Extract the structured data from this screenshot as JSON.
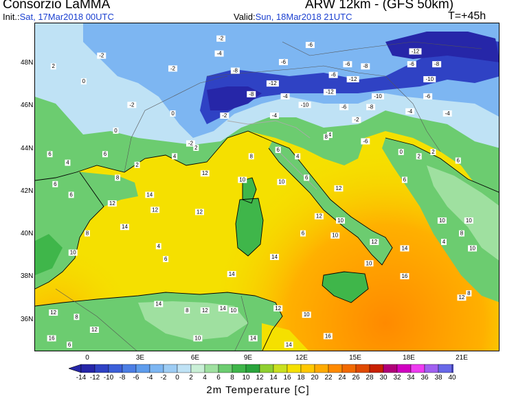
{
  "header": {
    "title": "Consorzio LaMMA",
    "model": "ARW 12km - (GFS 50km)",
    "init_label": "Init.:",
    "init_value": "Sat, 17Mar2018 00UTC",
    "valid_label": "Valid:",
    "valid_value": "Sun, 18Mar2018 21UTC",
    "forecast_step": "T=+45h"
  },
  "map": {
    "lat_labels": [
      "48N",
      "46N",
      "44N",
      "42N",
      "40N",
      "38N",
      "36N"
    ],
    "lon_labels": [
      "0",
      "3E",
      "6E",
      "9E",
      "12E",
      "15E",
      "18E",
      "21E"
    ],
    "sea_color": "#f5e000",
    "field_labels": [
      {
        "text": "-2",
        "lon": 7.5,
        "lat": 49.1
      },
      {
        "text": "-6",
        "lon": 12.5,
        "lat": 48.8
      },
      {
        "text": "-12",
        "lon": 18.4,
        "lat": 48.5
      },
      {
        "text": "-2",
        "lon": 0.8,
        "lat": 48.3
      },
      {
        "text": "-4",
        "lon": 7.4,
        "lat": 48.4
      },
      {
        "text": "-6",
        "lon": 11.0,
        "lat": 48.0
      },
      {
        "text": "-6",
        "lon": 14.6,
        "lat": 47.9
      },
      {
        "text": "-8",
        "lon": 15.6,
        "lat": 47.8
      },
      {
        "text": "-6",
        "lon": 18.2,
        "lat": 47.9
      },
      {
        "text": "-8",
        "lon": 19.6,
        "lat": 47.9
      },
      {
        "text": "2",
        "lon": -1.9,
        "lat": 47.8
      },
      {
        "text": "-2",
        "lon": 4.8,
        "lat": 47.7
      },
      {
        "text": "-8",
        "lon": 8.3,
        "lat": 47.6
      },
      {
        "text": "-6",
        "lon": 13.8,
        "lat": 47.4
      },
      {
        "text": "-12",
        "lon": 14.9,
        "lat": 47.2
      },
      {
        "text": "-10",
        "lon": 19.2,
        "lat": 47.2
      },
      {
        "text": "0",
        "lon": -0.2,
        "lat": 47.1
      },
      {
        "text": "-12",
        "lon": 10.4,
        "lat": 47.0
      },
      {
        "text": "-12",
        "lon": 13.6,
        "lat": 46.6
      },
      {
        "text": "-10",
        "lon": 16.3,
        "lat": 46.4
      },
      {
        "text": "-6",
        "lon": 19.1,
        "lat": 46.4
      },
      {
        "text": "-2",
        "lon": 2.5,
        "lat": 46.0
      },
      {
        "text": "-8",
        "lon": 9.2,
        "lat": 46.5
      },
      {
        "text": "-4",
        "lon": 11.1,
        "lat": 46.4
      },
      {
        "text": "-10",
        "lon": 12.2,
        "lat": 46.0
      },
      {
        "text": "-6",
        "lon": 14.4,
        "lat": 45.9
      },
      {
        "text": "-8",
        "lon": 15.9,
        "lat": 45.9
      },
      {
        "text": "-4",
        "lon": 18.1,
        "lat": 45.7
      },
      {
        "text": "-4",
        "lon": 20.2,
        "lat": 45.6
      },
      {
        "text": "0",
        "lon": 4.8,
        "lat": 45.6
      },
      {
        "text": "-2",
        "lon": 7.7,
        "lat": 45.5
      },
      {
        "text": "-4",
        "lon": 10.5,
        "lat": 45.5
      },
      {
        "text": "-2",
        "lon": 15.1,
        "lat": 45.3
      },
      {
        "text": "0",
        "lon": 1.6,
        "lat": 44.8
      },
      {
        "text": "4",
        "lon": 13.6,
        "lat": 44.6
      },
      {
        "text": "-6",
        "lon": 15.6,
        "lat": 44.3
      },
      {
        "text": "-2",
        "lon": 5.8,
        "lat": 44.2
      },
      {
        "text": "2",
        "lon": 6.1,
        "lat": 44.0
      },
      {
        "text": "6",
        "lon": 10.7,
        "lat": 43.9
      },
      {
        "text": "6",
        "lon": -2.1,
        "lat": 43.7
      },
      {
        "text": "4",
        "lon": 4.9,
        "lat": 43.6
      },
      {
        "text": "8",
        "lon": 9.2,
        "lat": 43.6
      },
      {
        "text": "4",
        "lon": 11.8,
        "lat": 43.6
      },
      {
        "text": "0",
        "lon": 17.6,
        "lat": 43.8
      },
      {
        "text": "2",
        "lon": 18.6,
        "lat": 43.6
      },
      {
        "text": "12",
        "lon": 6.6,
        "lat": 42.8
      },
      {
        "text": "10",
        "lon": 8.7,
        "lat": 42.5
      },
      {
        "text": "10",
        "lon": 10.9,
        "lat": 42.4
      },
      {
        "text": "6",
        "lon": 12.3,
        "lat": 42.6
      },
      {
        "text": "12",
        "lon": 14.1,
        "lat": 42.1
      },
      {
        "text": "6",
        "lon": 17.8,
        "lat": 42.5
      },
      {
        "text": "14",
        "lon": 3.5,
        "lat": 41.8
      },
      {
        "text": "12",
        "lon": 3.8,
        "lat": 41.1
      },
      {
        "text": "12",
        "lon": 6.3,
        "lat": 41.0
      },
      {
        "text": "12",
        "lon": 13.0,
        "lat": 40.8
      },
      {
        "text": "10",
        "lon": 14.2,
        "lat": 40.6
      },
      {
        "text": "10",
        "lon": 19.9,
        "lat": 40.6
      },
      {
        "text": "14",
        "lon": 2.1,
        "lat": 40.3
      },
      {
        "text": "6",
        "lon": 12.1,
        "lat": 40.0
      },
      {
        "text": "10",
        "lon": 13.9,
        "lat": 39.9
      },
      {
        "text": "12",
        "lon": 16.1,
        "lat": 39.6
      },
      {
        "text": "14",
        "lon": 17.8,
        "lat": 39.3
      },
      {
        "text": "14",
        "lon": 10.5,
        "lat": 38.9
      },
      {
        "text": "10",
        "lon": 15.8,
        "lat": 38.6
      },
      {
        "text": "14",
        "lon": 8.1,
        "lat": 38.1
      },
      {
        "text": "16",
        "lon": 17.8,
        "lat": 38.0
      },
      {
        "text": "14",
        "lon": 4.0,
        "lat": 36.7
      },
      {
        "text": "8",
        "lon": 5.6,
        "lat": 36.4
      },
      {
        "text": "12",
        "lon": 6.6,
        "lat": 36.4
      },
      {
        "text": "14",
        "lon": 7.6,
        "lat": 36.5
      },
      {
        "text": "10",
        "lon": 8.2,
        "lat": 36.4
      },
      {
        "text": "12",
        "lon": 10.7,
        "lat": 36.5
      },
      {
        "text": "10",
        "lon": 12.3,
        "lat": 36.2
      },
      {
        "text": "12",
        "lon": -1.9,
        "lat": 36.3
      },
      {
        "text": "8",
        "lon": -0.6,
        "lat": 36.1
      },
      {
        "text": "12",
        "lon": 0.4,
        "lat": 35.5
      },
      {
        "text": "16",
        "lon": -2.0,
        "lat": 35.1
      },
      {
        "text": "10",
        "lon": 6.2,
        "lat": 35.1
      },
      {
        "text": "14",
        "lon": 9.3,
        "lat": 35.1
      },
      {
        "text": "16",
        "lon": 13.5,
        "lat": 35.2
      },
      {
        "text": "6",
        "lon": -1.0,
        "lat": 34.8
      },
      {
        "text": "14",
        "lon": 11.3,
        "lat": 34.8
      },
      {
        "text": "10",
        "lon": 21.4,
        "lat": 40.6
      },
      {
        "text": "8",
        "lon": 21.0,
        "lat": 40.0
      },
      {
        "text": "4",
        "lon": 20.0,
        "lat": 39.6
      },
      {
        "text": "10",
        "lon": 21.6,
        "lat": 39.3
      },
      {
        "text": "12",
        "lon": 21.0,
        "lat": 37.0
      },
      {
        "text": "8",
        "lon": 21.4,
        "lat": 37.2
      },
      {
        "text": "6",
        "lon": -0.9,
        "lat": 41.8
      },
      {
        "text": "6",
        "lon": -1.8,
        "lat": 42.3
      },
      {
        "text": "4",
        "lon": -1.1,
        "lat": 43.3
      },
      {
        "text": "6",
        "lon": 1.0,
        "lat": 43.7
      },
      {
        "text": "2",
        "lon": 2.8,
        "lat": 43.2
      },
      {
        "text": "8",
        "lon": 1.7,
        "lat": 42.6
      },
      {
        "text": "12",
        "lon": 1.4,
        "lat": 41.4
      },
      {
        "text": "8",
        "lon": 0.0,
        "lat": 40.0
      },
      {
        "text": "10",
        "lon": -0.8,
        "lat": 39.1
      },
      {
        "text": "4",
        "lon": 4.0,
        "lat": 39.4
      },
      {
        "text": "6",
        "lon": 4.4,
        "lat": 38.8
      },
      {
        "text": "8",
        "lon": 13.4,
        "lat": 44.5
      },
      {
        "text": "2",
        "lon": 19.4,
        "lat": 43.8
      },
      {
        "text": "6",
        "lon": 20.8,
        "lat": 43.4
      }
    ]
  },
  "colorbar": {
    "title": "2m Temperature [C]",
    "tick_labels": [
      "-14",
      "-12",
      "-10",
      "-8",
      "-6",
      "-4",
      "-2",
      "0",
      "2",
      "4",
      "6",
      "8",
      "10",
      "12",
      "14",
      "16",
      "18",
      "20",
      "22",
      "24",
      "26",
      "28",
      "30",
      "32",
      "34",
      "36",
      "38",
      "40"
    ],
    "colors": [
      "#2626a8",
      "#2f42c4",
      "#3c5fd8",
      "#4c7ee4",
      "#5e9cec",
      "#7db6f2",
      "#9dccf4",
      "#bfe2f5",
      "#c9efd6",
      "#9fe0a0",
      "#6ccc70",
      "#3fb64a",
      "#2aa43c",
      "#8fcf30",
      "#c9e020",
      "#f5e000",
      "#ffc800",
      "#ffab00",
      "#ff8a00",
      "#f26a00",
      "#e04a00",
      "#c82000",
      "#b00078",
      "#d000c0",
      "#ee3cf0",
      "#a060f0",
      "#6868e8",
      "#4848c8"
    ]
  }
}
